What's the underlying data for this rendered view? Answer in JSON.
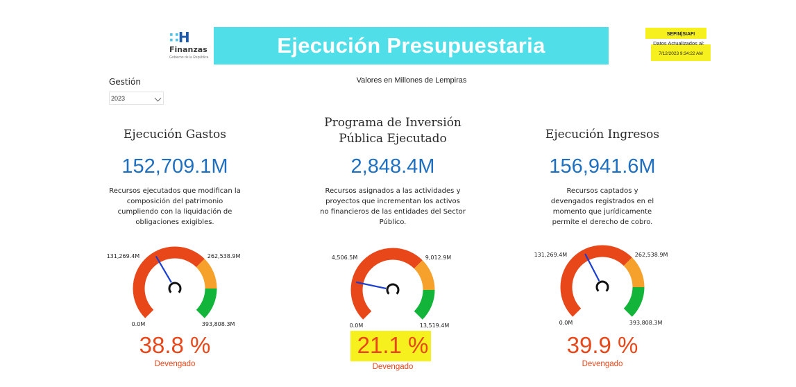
{
  "header": {
    "logo_name": "Finanzas",
    "logo_sub": "Gobierno de la República",
    "title": "Ejecución Presupuestaria",
    "source": "SEFIN|SIAFI",
    "updated_label": "Datos Actualizados al:",
    "updated_time": "7/12/2023 9:34:22 AM"
  },
  "subtitle": "Valores en Millones de Lempiras",
  "filter": {
    "label": "Gestión",
    "value": "2023"
  },
  "colors": {
    "red": "#e8471a",
    "amber": "#f5a12b",
    "green": "#12b43a",
    "needle": "#1a3fd0",
    "value_blue": "#1f6fc0",
    "highlight": "#f7f01f"
  },
  "chart_data": [
    {
      "type": "gauge",
      "title": "Ejecución Gastos",
      "value_label": "152,709.1M",
      "value": 152709.1,
      "description": [
        "Recursos ejecutados que modifican la",
        "composición del patrimonio",
        "cumpliendo con la liquidación de",
        "obligaciones exigibles."
      ],
      "min": 0,
      "max": 393808.3,
      "min_label": "0.0M",
      "max_label": "393,808.3M",
      "mid_labels": [
        "131,269.4M",
        "262,538.9M"
      ],
      "bands": [
        {
          "from": 0,
          "to": 262538.9,
          "color": "red"
        },
        {
          "from": 262538.9,
          "to": 328173.6,
          "color": "amber"
        },
        {
          "from": 328173.6,
          "to": 393808.3,
          "color": "green"
        }
      ],
      "needle_value": 152709.1,
      "percent": "38.8 %",
      "percent_label": "Devengado"
    },
    {
      "type": "gauge",
      "title": "Programa de Inversión Pública Ejecutado",
      "title_lines": [
        "Programa de Inversión",
        "Pública Ejecutado"
      ],
      "value_label": "2,848.4M",
      "value": 2848.4,
      "description": [
        "Recursos asignados a las actividades y",
        "proyectos que incrementan los activos",
        "no financieros de las entidades del Sector",
        "Público."
      ],
      "min": 0,
      "max": 13519.4,
      "min_label": "0.0M",
      "max_label": "13,519.4M",
      "mid_labels": [
        "4,506.5M",
        "9,012.9M"
      ],
      "bands": [
        {
          "from": 0,
          "to": 9012.9,
          "color": "red"
        },
        {
          "from": 9012.9,
          "to": 11266.2,
          "color": "amber"
        },
        {
          "from": 11266.2,
          "to": 13519.4,
          "color": "green"
        }
      ],
      "needle_value": 2848.4,
      "percent": "21.1 %",
      "percent_label": "Devengado"
    },
    {
      "type": "gauge",
      "title": "Ejecución Ingresos",
      "value_label": "156,941.6M",
      "value": 156941.6,
      "description": [
        "Recursos captados y",
        "devengados registrados en el",
        "momento que jurídicamente",
        "permite el derecho de cobro."
      ],
      "min": 0,
      "max": 393808.3,
      "min_label": "0.0M",
      "max_label": "393,808.3M",
      "mid_labels": [
        "131,269.4M",
        "262,538.9M"
      ],
      "bands": [
        {
          "from": 0,
          "to": 262538.9,
          "color": "red"
        },
        {
          "from": 262538.9,
          "to": 328173.6,
          "color": "amber"
        },
        {
          "from": 328173.6,
          "to": 393808.3,
          "color": "green"
        }
      ],
      "needle_value": 156941.6,
      "percent": "39.9 %",
      "percent_label": "Devengado"
    }
  ]
}
